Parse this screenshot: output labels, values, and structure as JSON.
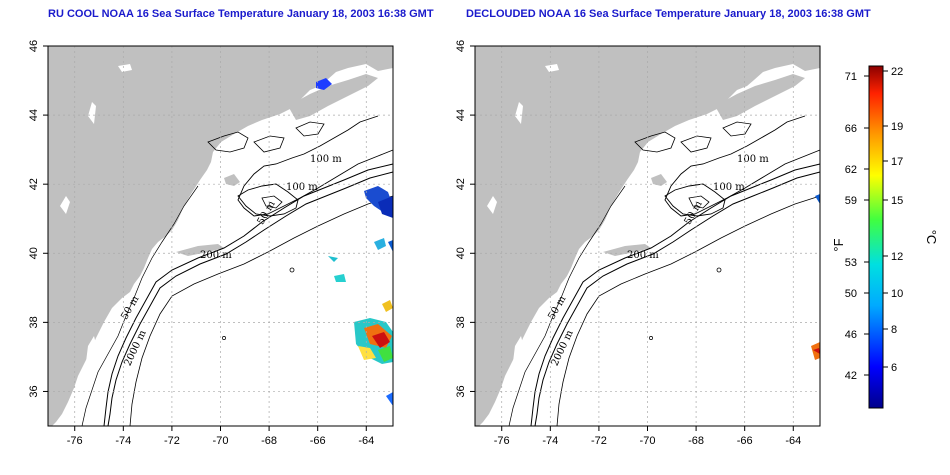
{
  "titles": {
    "left": "RU COOL NOAA 16 Sea Surface Temperature January 18, 2003 16:38 GMT",
    "right": "DECLOUDED NOAA 16 Sea Surface Temperature January 18, 2003 16:38 GMT"
  },
  "contour_labels": [
    "100 m",
    "100 m",
    "50 m",
    "200 m",
    "50 m",
    "2000 m"
  ],
  "colorbar": {
    "unit_f": "°F",
    "unit_c": "°C",
    "f_ticks": [
      "71",
      "66",
      "62",
      "59",
      "53",
      "50",
      "46",
      "42"
    ],
    "c_ticks": [
      "22",
      "19",
      "17",
      "15",
      "12",
      "10",
      "8",
      "6"
    ]
  },
  "colors": {
    "land": "#c0c0c0",
    "title": "#1a1acc",
    "grid": "#aaaaaa"
  },
  "chart_data": [
    {
      "type": "heatmap",
      "title": "RU COOL NOAA 16 Sea Surface Temperature January 18, 2003 16:38 GMT",
      "x_ticks": [
        "-76",
        "-74",
        "-72",
        "-70",
        "-68",
        "-66",
        "-64"
      ],
      "y_ticks": [
        "36",
        "38",
        "40",
        "42",
        "44",
        "46"
      ],
      "xlim": [
        -77.1,
        -62.9
      ],
      "ylim": [
        35,
        46
      ],
      "grid": true
    },
    {
      "type": "heatmap",
      "title": "DECLOUDED NOAA 16 Sea Surface Temperature January 18, 2003 16:38 GMT",
      "x_ticks": [
        "-76",
        "-74",
        "-72",
        "-70",
        "-68",
        "-66",
        "-64"
      ],
      "y_ticks": [
        "36",
        "38",
        "40",
        "42",
        "44",
        "46"
      ],
      "xlim": [
        -77.1,
        -62.9
      ],
      "ylim": [
        35,
        46
      ],
      "grid": true
    }
  ]
}
